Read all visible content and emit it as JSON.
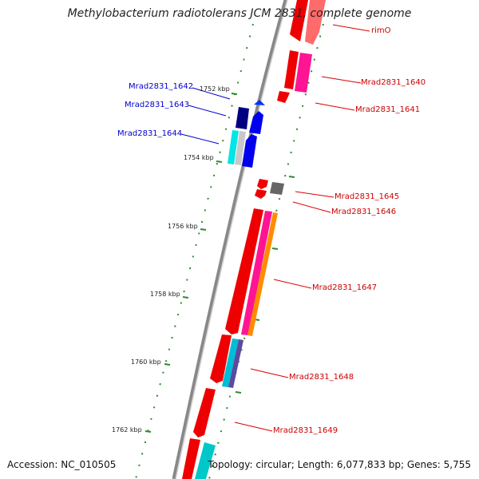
{
  "title": "Methylobacterium radiotolerans JCM 2831, complete genome",
  "footer": {
    "accession": "Accession: NC_010505",
    "summary": "Topology: circular; Length: 6,077,833 bp; Genes: 5,755"
  },
  "ticks": [
    "1752 kbp",
    "1754 kbp",
    "1756 kbp",
    "1758 kbp",
    "1760 kbp",
    "1762 kbp"
  ],
  "genes_forward": [
    "rimO",
    "Mrad2831_1640",
    "Mrad2831_1641",
    "Mrad2831_1645",
    "Mrad2831_1646",
    "Mrad2831_1647",
    "Mrad2831_1648",
    "Mrad2831_1649"
  ],
  "genes_reverse": [
    "Mrad2831_1642",
    "Mrad2831_1643",
    "Mrad2831_1644"
  ],
  "colors": {
    "forward": "#ee0000",
    "reverse": "#0000ee",
    "backbone": "#888888",
    "ticks": "#2e8b2e"
  }
}
